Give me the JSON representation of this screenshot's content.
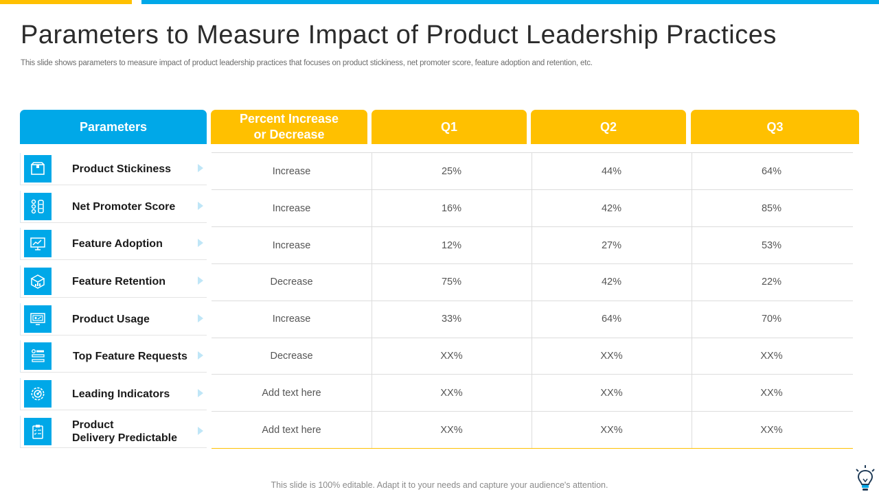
{
  "title": "Parameters to Measure Impact of Product Leadership Practices",
  "subtitle": "This slide shows parameters to measure impact of product leadership practices that focuses on product stickiness, net promoter score, feature adoption and retention, etc.",
  "headers": {
    "parameters": "Parameters",
    "percent_line1": "Percent Increase",
    "percent_line2": "or Decrease",
    "q1": "Q1",
    "q2": "Q2",
    "q3": "Q3"
  },
  "rows": [
    {
      "label": "Product Stickiness",
      "label2": "",
      "icon": "box-icon",
      "change": "Increase",
      "q1": "25%",
      "q2": "44%",
      "q3": "64%"
    },
    {
      "label": "Net Promoter Score",
      "label2": "",
      "icon": "people-score-icon",
      "change": "Increase",
      "q1": "16%",
      "q2": "42%",
      "q3": "85%"
    },
    {
      "label": "Feature Adoption",
      "label2": "",
      "icon": "monitor-chart-icon",
      "change": "Increase",
      "q1": "12%",
      "q2": "27%",
      "q3": "53%"
    },
    {
      "label": "Feature Retention",
      "label2": "",
      "icon": "box-chart-icon",
      "change": "Decrease",
      "q1": "75%",
      "q2": "42%",
      "q3": "22%"
    },
    {
      "label": "Product Usage",
      "label2": "",
      "icon": "monitor-usage-icon",
      "change": "Increase",
      "q1": "33%",
      "q2": "64%",
      "q3": "70%"
    },
    {
      "label": "Top Feature Requests",
      "label2": "",
      "icon": "feature-list-icon",
      "change": "Decrease",
      "q1": "XX%",
      "q2": "XX%",
      "q3": "XX%"
    },
    {
      "label": "Leading Indicators",
      "label2": "",
      "icon": "gear-target-icon",
      "change": "Add text here",
      "q1": "XX%",
      "q2": "XX%",
      "q3": "XX%"
    },
    {
      "label": "Product",
      "label2": "Delivery Predictable",
      "icon": "clipboard-icon",
      "change": "Add text here",
      "q1": "XX%",
      "q2": "XX%",
      "q3": "XX%"
    }
  ],
  "footer": "This slide is 100% editable. Adapt it to your needs and capture your audience's attention.",
  "colors": {
    "accent_blue": "#00A8E8",
    "accent_yellow": "#FFC000"
  }
}
